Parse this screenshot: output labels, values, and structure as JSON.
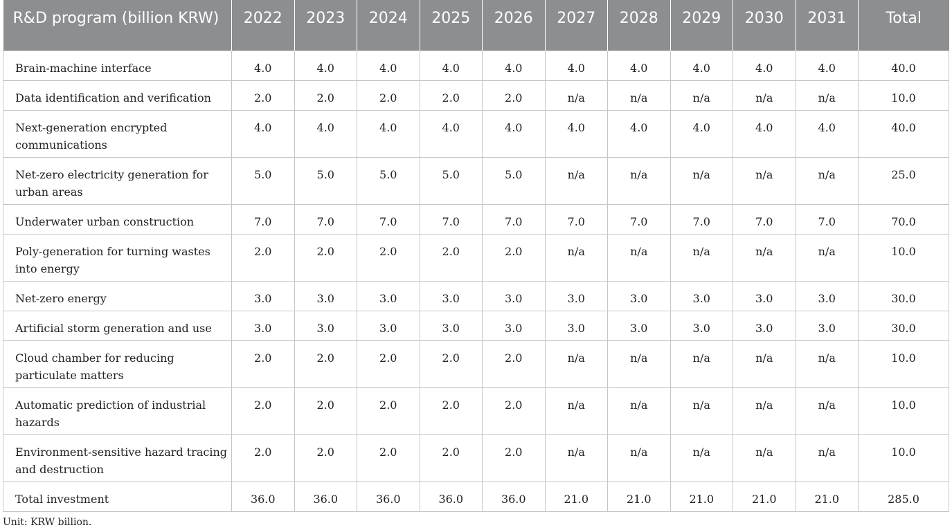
{
  "table": {
    "headers": [
      "R&D program (billion KRW)",
      "2022",
      "2023",
      "2024",
      "2025",
      "2026",
      "2027",
      "2028",
      "2029",
      "2030",
      "2031",
      "Total"
    ],
    "rows": [
      {
        "label": "Brain-machine interface",
        "values": [
          "4.0",
          "4.0",
          "4.0",
          "4.0",
          "4.0",
          "4.0",
          "4.0",
          "4.0",
          "4.0",
          "4.0",
          "40.0"
        ]
      },
      {
        "label": "Data identification and verification",
        "values": [
          "2.0",
          "2.0",
          "2.0",
          "2.0",
          "2.0",
          "n/a",
          "n/a",
          "n/a",
          "n/a",
          "n/a",
          "10.0"
        ]
      },
      {
        "label": "Next-generation encrypted communications",
        "values": [
          "4.0",
          "4.0",
          "4.0",
          "4.0",
          "4.0",
          "4.0",
          "4.0",
          "4.0",
          "4.0",
          "4.0",
          "40.0"
        ]
      },
      {
        "label": "Net-zero electricity generation for urban areas",
        "values": [
          "5.0",
          "5.0",
          "5.0",
          "5.0",
          "5.0",
          "n/a",
          "n/a",
          "n/a",
          "n/a",
          "n/a",
          "25.0"
        ]
      },
      {
        "label": "Underwater urban construction",
        "values": [
          "7.0",
          "7.0",
          "7.0",
          "7.0",
          "7.0",
          "7.0",
          "7.0",
          "7.0",
          "7.0",
          "7.0",
          "70.0"
        ]
      },
      {
        "label": "Poly-generation for turning wastes into energy",
        "values": [
          "2.0",
          "2.0",
          "2.0",
          "2.0",
          "2.0",
          "n/a",
          "n/a",
          "n/a",
          "n/a",
          "n/a",
          "10.0"
        ]
      },
      {
        "label": "Net-zero energy",
        "values": [
          "3.0",
          "3.0",
          "3.0",
          "3.0",
          "3.0",
          "3.0",
          "3.0",
          "3.0",
          "3.0",
          "3.0",
          "30.0"
        ]
      },
      {
        "label": "Artificial storm generation and use",
        "values": [
          "3.0",
          "3.0",
          "3.0",
          "3.0",
          "3.0",
          "3.0",
          "3.0",
          "3.0",
          "3.0",
          "3.0",
          "30.0"
        ]
      },
      {
        "label": "Cloud chamber for reducing particulate matters",
        "values": [
          "2.0",
          "2.0",
          "2.0",
          "2.0",
          "2.0",
          "n/a",
          "n/a",
          "n/a",
          "n/a",
          "n/a",
          "10.0"
        ]
      },
      {
        "label": "Automatic prediction of industrial hazards",
        "values": [
          "2.0",
          "2.0",
          "2.0",
          "2.0",
          "2.0",
          "n/a",
          "n/a",
          "n/a",
          "n/a",
          "n/a",
          "10.0"
        ]
      },
      {
        "label": "Environment-sensitive hazard tracing and destruction",
        "values": [
          "2.0",
          "2.0",
          "2.0",
          "2.0",
          "2.0",
          "n/a",
          "n/a",
          "n/a",
          "n/a",
          "n/a",
          "10.0"
        ]
      },
      {
        "label": "Total investment",
        "values": [
          "36.0",
          "36.0",
          "36.0",
          "36.0",
          "36.0",
          "21.0",
          "21.0",
          "21.0",
          "21.0",
          "21.0",
          "285.0"
        ]
      }
    ]
  },
  "footnote": "Unit: KRW billion.",
  "colors": {
    "header_bg": "#8c8e90",
    "header_text": "#ffffff",
    "grid": "#c4c6c8"
  }
}
